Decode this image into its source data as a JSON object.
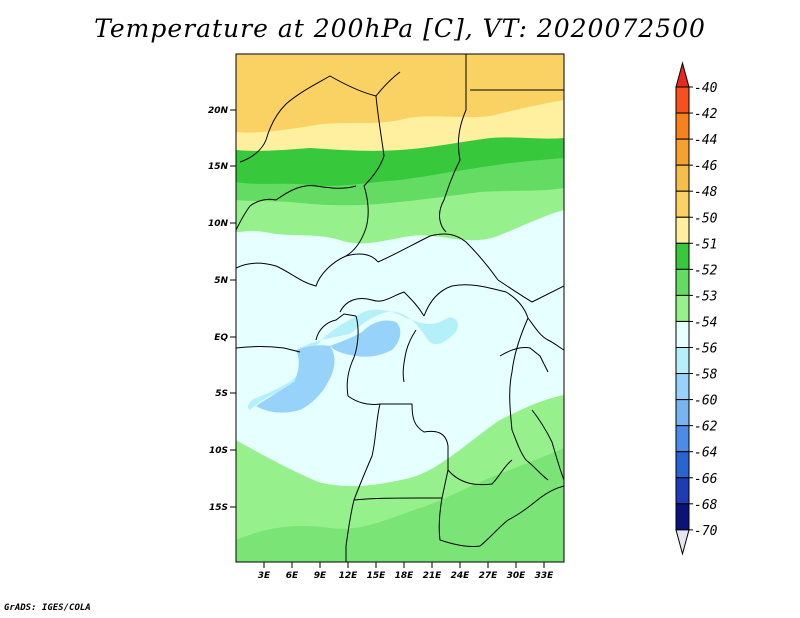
{
  "title": "Temperature at 200hPa [C], VT: 2020072500",
  "credit": "GrADS: IGES/COLA",
  "lat_labels": [
    "20N",
    "15N",
    "10N",
    "5N",
    "EQ",
    "5S",
    "10S",
    "15S"
  ],
  "lon_labels": [
    "3E",
    "6E",
    "9E",
    "12E",
    "15E",
    "18E",
    "21E",
    "24E",
    "27E",
    "30E",
    "33E"
  ],
  "colorbar": {
    "levels": [
      "-40",
      "-42",
      "-44",
      "-46",
      "-48",
      "-50",
      "-51",
      "-52",
      "-53",
      "-54",
      "-56",
      "-58",
      "-60",
      "-62",
      "-64",
      "-66",
      "-68",
      "-70"
    ],
    "colors": [
      "#e8281e",
      "#f5501e",
      "#f5821e",
      "#f5a032",
      "#f5be4b",
      "#fad264",
      "#fff0a0",
      "#37c83c",
      "#64dc64",
      "#96f08c",
      "#e6ffff",
      "#b4f0fa",
      "#96d2fa",
      "#78b4f0",
      "#4c8ce6",
      "#2864d2",
      "#1e3cb4",
      "#0a1478",
      "#e6e6f0"
    ]
  }
}
